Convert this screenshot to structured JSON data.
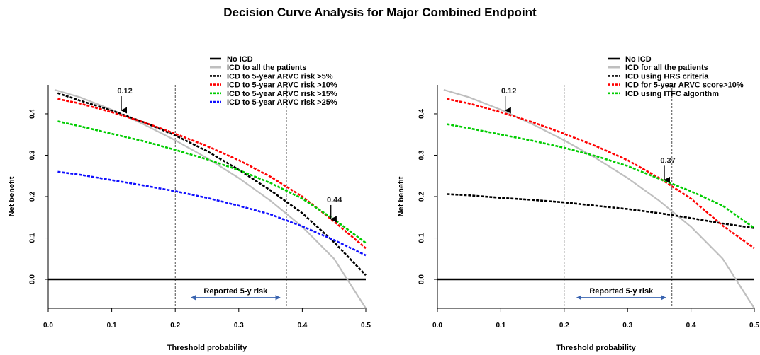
{
  "title": "Decision Curve Analysis for Major Combined Endpoint",
  "chart_data": [
    {
      "type": "line",
      "xlabel": "Threshold probability",
      "ylabel": "Net benefit",
      "xlim": [
        0.0,
        0.5
      ],
      "ylim": [
        -0.07,
        0.47
      ],
      "xticks": [
        "0.0",
        "0.1",
        "0.2",
        "0.3",
        "0.4",
        "0.5"
      ],
      "yticks": [
        "0.0",
        "0.1",
        "0.2",
        "0.3",
        "0.4"
      ],
      "legend_position": "top-right",
      "colors": {
        "no_icd": "#000000",
        "all": "#bfbfbf",
        "black": "#000000",
        "red": "#ff0000",
        "green": "#00cc00",
        "blue": "#1010ff"
      },
      "series": [
        {
          "name": "No ICD",
          "color": "no_icd",
          "style": "solid",
          "x": [
            0.0,
            0.5
          ],
          "y": [
            0.0,
            0.0
          ]
        },
        {
          "name": "ICD to all the patients",
          "color": "all",
          "style": "solid",
          "x": [
            0.01,
            0.05,
            0.1,
            0.15,
            0.2,
            0.25,
            0.3,
            0.35,
            0.4,
            0.45,
            0.5
          ],
          "y": [
            0.458,
            0.44,
            0.41,
            0.375,
            0.336,
            0.293,
            0.245,
            0.19,
            0.127,
            0.05,
            -0.07
          ]
        },
        {
          "name": "ICD to 5-year ARVC risk >5%",
          "color": "black",
          "style": "dashed",
          "x": [
            0.015,
            0.05,
            0.1,
            0.15,
            0.2,
            0.25,
            0.3,
            0.35,
            0.4,
            0.45,
            0.5
          ],
          "y": [
            0.45,
            0.432,
            0.408,
            0.38,
            0.348,
            0.31,
            0.265,
            0.215,
            0.16,
            0.09,
            0.01
          ]
        },
        {
          "name": "ICD to 5-year ARVC risk >10%",
          "color": "red",
          "style": "dashed",
          "x": [
            0.015,
            0.05,
            0.1,
            0.15,
            0.2,
            0.25,
            0.3,
            0.35,
            0.4,
            0.45,
            0.5
          ],
          "y": [
            0.436,
            0.425,
            0.404,
            0.38,
            0.352,
            0.322,
            0.288,
            0.248,
            0.2,
            0.14,
            0.075
          ]
        },
        {
          "name": "ICD to 5-year ARVC risk >15%",
          "color": "green",
          "style": "dashed",
          "x": [
            0.015,
            0.05,
            0.1,
            0.15,
            0.2,
            0.25,
            0.3,
            0.35,
            0.4,
            0.45,
            0.5
          ],
          "y": [
            0.382,
            0.37,
            0.352,
            0.334,
            0.313,
            0.29,
            0.264,
            0.233,
            0.195,
            0.145,
            0.088
          ]
        },
        {
          "name": "ICD to 5-year ARVC risk >25%",
          "color": "blue",
          "style": "dashed",
          "x": [
            0.015,
            0.05,
            0.1,
            0.15,
            0.2,
            0.25,
            0.3,
            0.35,
            0.4,
            0.45,
            0.5
          ],
          "y": [
            0.26,
            0.253,
            0.24,
            0.227,
            0.213,
            0.197,
            0.178,
            0.157,
            0.128,
            0.095,
            0.058
          ]
        }
      ],
      "vlines": [
        0.2,
        0.375
      ],
      "arrow_annotations": [
        {
          "label": "0.12",
          "x": 0.115,
          "y": 0.405
        },
        {
          "label": "0.44",
          "x": 0.445,
          "y": 0.142
        }
      ],
      "range_annotation": {
        "label": "Reported 5-y risk",
        "x_from": 0.225,
        "x_to": 0.365,
        "y": -0.044
      }
    },
    {
      "type": "line",
      "xlabel": "Threshold probability",
      "ylabel": "Net benefit",
      "xlim": [
        0.0,
        0.5
      ],
      "ylim": [
        -0.07,
        0.47
      ],
      "xticks": [
        "0.0",
        "0.1",
        "0.2",
        "0.3",
        "0.4",
        "0.5"
      ],
      "yticks": [
        "0.0",
        "0.1",
        "0.2",
        "0.3",
        "0.4"
      ],
      "legend_position": "top-right",
      "colors": {
        "no_icd": "#000000",
        "all": "#bfbfbf",
        "black": "#000000",
        "red": "#ff0000",
        "green": "#00cc00"
      },
      "series": [
        {
          "name": "No ICD",
          "color": "no_icd",
          "style": "solid",
          "x": [
            0.0,
            0.5
          ],
          "y": [
            0.0,
            0.0
          ]
        },
        {
          "name": "ICD for all the patients",
          "color": "all",
          "style": "solid",
          "x": [
            0.01,
            0.05,
            0.1,
            0.15,
            0.2,
            0.25,
            0.3,
            0.35,
            0.4,
            0.45,
            0.5
          ],
          "y": [
            0.458,
            0.44,
            0.41,
            0.375,
            0.336,
            0.293,
            0.245,
            0.19,
            0.127,
            0.05,
            -0.07
          ]
        },
        {
          "name": "ICD using HRS criteria",
          "color": "black",
          "style": "dashed",
          "x": [
            0.015,
            0.05,
            0.1,
            0.15,
            0.2,
            0.25,
            0.3,
            0.35,
            0.4,
            0.45,
            0.5
          ],
          "y": [
            0.206,
            0.203,
            0.197,
            0.192,
            0.186,
            0.178,
            0.17,
            0.16,
            0.148,
            0.135,
            0.124
          ]
        },
        {
          "name": "ICD for 5-year ARVC score>10%",
          "color": "red",
          "style": "dashed",
          "x": [
            0.015,
            0.05,
            0.1,
            0.15,
            0.2,
            0.25,
            0.3,
            0.35,
            0.4,
            0.45,
            0.5
          ],
          "y": [
            0.436,
            0.425,
            0.404,
            0.38,
            0.352,
            0.322,
            0.288,
            0.245,
            0.195,
            0.13,
            0.075
          ]
        },
        {
          "name": "ICD using ITFC algorithm",
          "color": "green",
          "style": "dashed",
          "x": [
            0.015,
            0.05,
            0.1,
            0.15,
            0.2,
            0.25,
            0.3,
            0.35,
            0.4,
            0.45,
            0.5
          ],
          "y": [
            0.375,
            0.365,
            0.35,
            0.335,
            0.318,
            0.298,
            0.274,
            0.243,
            0.213,
            0.178,
            0.124
          ]
        }
      ],
      "vlines": [
        0.2,
        0.37
      ],
      "arrow_annotations": [
        {
          "label": "0.12",
          "x": 0.107,
          "y": 0.405
        },
        {
          "label": "0.37",
          "x": 0.358,
          "y": 0.237
        }
      ],
      "range_annotation": {
        "label": "Reported 5-y risk",
        "x_from": 0.22,
        "x_to": 0.36,
        "y": -0.044
      }
    }
  ]
}
